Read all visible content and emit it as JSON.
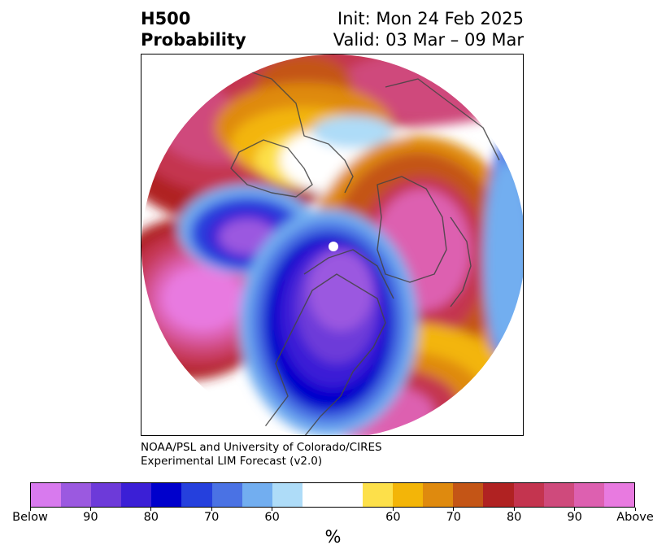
{
  "title": {
    "left_line1": "H500",
    "left_line2": "Probability",
    "right_line1": "Init: Mon 24 Feb 2025",
    "right_line2": "Valid: 03 Mar – 09 Mar"
  },
  "credits": {
    "line1": "NOAA/PSL and University of Colorado/CIRES",
    "line2": "Experimental LIM Forecast (v2.0)"
  },
  "colorbar": {
    "label": "%",
    "colors": [
      "#d87aee",
      "#9b59e0",
      "#6d3ad9",
      "#3b1fd6",
      "#0000cc",
      "#2540dd",
      "#4a72e4",
      "#72aef0",
      "#aedcf8",
      "#ffffff",
      "#ffffff",
      "#fde04a",
      "#f3b508",
      "#df8a0e",
      "#c45516",
      "#b02222",
      "#c4344f",
      "#cf4a7c",
      "#dd60b0",
      "#e87ae0"
    ],
    "tick_labels": [
      "Below",
      "90",
      "80",
      "70",
      "60",
      "60",
      "70",
      "80",
      "90",
      "Above"
    ]
  },
  "map": {
    "projection": "north-polar-stereographic",
    "regions": [
      {
        "name": "north-pacific-above",
        "category": "Above"
      },
      {
        "name": "canada-below",
        "category": "Below"
      },
      {
        "name": "aleutian-below",
        "category": "Below"
      },
      {
        "name": "scandinavia-above",
        "category": "Above"
      },
      {
        "name": "north-atlantic-above",
        "category": "Above"
      },
      {
        "name": "western-russia-above",
        "category": "Above"
      }
    ]
  }
}
